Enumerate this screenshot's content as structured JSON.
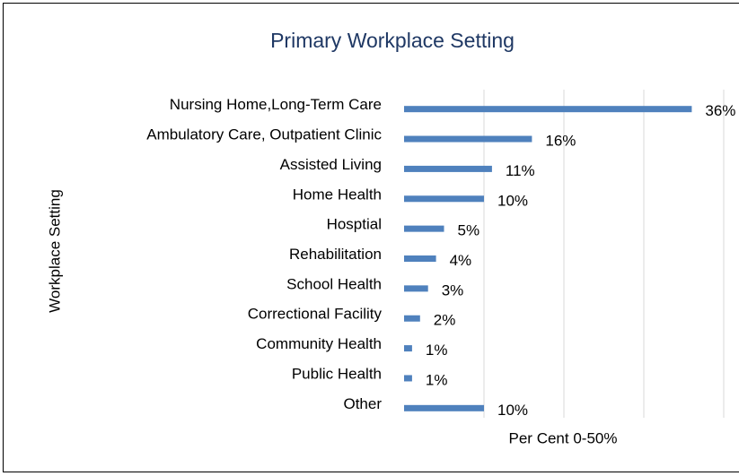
{
  "chart_data": {
    "type": "bar",
    "orientation": "horizontal",
    "title": "Primary Workplace Setting",
    "x_label": "Per Cent 0-50%",
    "y_label": "Workplace Setting",
    "categories": [
      "Nursing Home,Long-Term Care",
      "Ambulatory Care, Outpatient Clinic",
      "Assisted Living",
      "Home Health",
      "Hosptial",
      "Rehabilitation",
      "School Health",
      "Correctional Facility",
      "Community Health",
      "Public Health",
      "Other"
    ],
    "values": [
      36,
      16,
      11,
      10,
      5,
      4,
      3,
      2,
      1,
      1,
      10
    ],
    "value_labels": [
      "36%",
      "16%",
      "11%",
      "10%",
      "5%",
      "4%",
      "3%",
      "2%",
      "1%",
      "1%",
      "10%"
    ],
    "color": "#4f81bd",
    "xlim": [
      0,
      50
    ],
    "xticks": [
      10,
      20,
      30,
      40
    ],
    "grid": true
  }
}
